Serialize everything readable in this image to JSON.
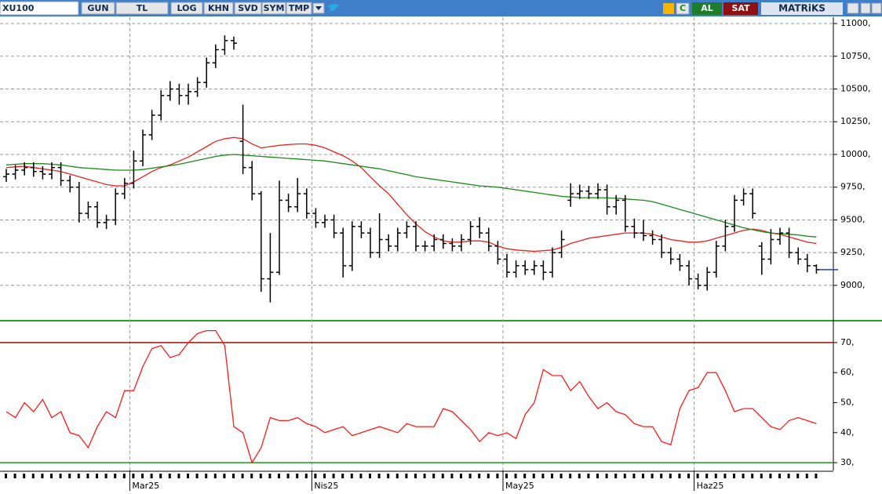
{
  "toolbar": {
    "symbol": "XU100",
    "buttons": [
      "GUN",
      "TL",
      "LOG",
      "KHN",
      "SVD",
      "SYM",
      "TMP"
    ],
    "refresh": "C",
    "buy": "AL",
    "sell": "SAT",
    "brand": "MATRiKS"
  },
  "chart_data": [
    {
      "type": "ohlc",
      "color": "#000000",
      "categories": [
        null,
        null,
        null,
        null,
        null,
        null,
        null,
        null,
        null,
        null,
        null,
        null,
        null,
        null,
        "Mar25",
        null,
        null,
        null,
        null,
        null,
        null,
        null,
        null,
        null,
        null,
        null,
        null,
        null,
        null,
        null,
        null,
        null,
        null,
        null,
        "Nis25",
        null,
        null,
        null,
        null,
        null,
        null,
        null,
        null,
        null,
        null,
        null,
        null,
        null,
        null,
        null,
        null,
        null,
        null,
        null,
        null,
        "May25",
        null,
        null,
        null,
        null,
        null,
        null,
        null,
        null,
        null,
        null,
        null,
        null,
        null,
        null,
        null,
        null,
        null,
        null,
        null,
        null,
        "Haz25",
        null,
        null,
        null,
        null,
        null,
        null,
        null,
        null,
        null,
        null,
        null,
        null,
        null
      ],
      "open": [
        9830,
        9850,
        9880,
        9900,
        9870,
        9850,
        9900,
        9800,
        9750,
        9550,
        9600,
        9480,
        9500,
        9700,
        9780,
        9950,
        10150,
        10300,
        10450,
        10500,
        10450,
        10480,
        10550,
        10700,
        10800,
        10870,
        10100,
        9900,
        9700,
        9050,
        9100,
        9650,
        9600,
        9700,
        9550,
        9480,
        9500,
        9400,
        9150,
        9450,
        9400,
        9250,
        9350,
        9300,
        9400,
        9450,
        9300,
        9300,
        9350,
        9320,
        9300,
        9350,
        9450,
        9400,
        9300,
        9200,
        9100,
        9150,
        9120,
        9150,
        9100,
        9250,
        9650,
        9700,
        9720,
        9700,
        9730,
        9600,
        9650,
        9450,
        9400,
        9380,
        9350,
        9250,
        9200,
        9150,
        9050,
        9000,
        9100,
        9300,
        9450,
        9650,
        9700,
        9300,
        9200,
        9350,
        9400,
        9250,
        9200,
        9150
      ],
      "high": [
        9890,
        9920,
        9940,
        9940,
        9910,
        9940,
        9940,
        9840,
        9790,
        9640,
        9640,
        9540,
        9740,
        9820,
        10030,
        10190,
        10340,
        10490,
        10560,
        10540,
        10540,
        10590,
        10740,
        10840,
        10910,
        10900,
        10380,
        9950,
        9720,
        9400,
        9800,
        9700,
        9820,
        9740,
        9590,
        9540,
        9540,
        9440,
        9490,
        9490,
        9440,
        9550,
        9390,
        9440,
        9490,
        9490,
        9340,
        9390,
        9390,
        9360,
        9390,
        9490,
        9520,
        9440,
        9340,
        9240,
        9190,
        9190,
        9190,
        9190,
        9290,
        9420,
        9780,
        9770,
        9760,
        9780,
        9770,
        9690,
        9690,
        9510,
        9500,
        9420,
        9390,
        9290,
        9240,
        9190,
        9090,
        9140,
        9340,
        9500,
        9690,
        9740,
        9740,
        9330,
        9430,
        9440,
        9440,
        9290,
        9240,
        9160
      ],
      "low": [
        9790,
        9810,
        9840,
        9830,
        9810,
        9810,
        9760,
        9710,
        9480,
        9510,
        9440,
        9430,
        9460,
        9660,
        9740,
        9910,
        10110,
        10260,
        10410,
        10380,
        10380,
        10440,
        10510,
        10660,
        10760,
        10800,
        9850,
        9650,
        8950,
        8870,
        9080,
        9560,
        9560,
        9510,
        9440,
        9440,
        9360,
        9060,
        9110,
        9360,
        9210,
        9210,
        9260,
        9260,
        9360,
        9260,
        9260,
        9260,
        9280,
        9260,
        9260,
        9310,
        9360,
        9260,
        9160,
        9060,
        9060,
        9080,
        9080,
        9040,
        9060,
        9210,
        9600,
        9660,
        9660,
        9660,
        9540,
        9540,
        9410,
        9360,
        9340,
        9310,
        9210,
        9160,
        9110,
        9000,
        8970,
        8960,
        9060,
        9260,
        9410,
        9610,
        9510,
        9080,
        9160,
        9310,
        9210,
        9160,
        9100,
        9090
      ],
      "close": [
        9850,
        9880,
        9900,
        9870,
        9850,
        9900,
        9800,
        9750,
        9550,
        9600,
        9480,
        9500,
        9700,
        9780,
        9950,
        10150,
        10300,
        10450,
        10500,
        10450,
        10480,
        10550,
        10700,
        10800,
        10870,
        10850,
        9900,
        9700,
        9050,
        9100,
        9650,
        9600,
        9700,
        9550,
        9480,
        9500,
        9400,
        9150,
        9450,
        9400,
        9250,
        9350,
        9300,
        9400,
        9450,
        9300,
        9300,
        9350,
        9320,
        9300,
        9350,
        9450,
        9400,
        9300,
        9200,
        9100,
        9150,
        9120,
        9150,
        9100,
        9250,
        9350,
        9700,
        9720,
        9700,
        9730,
        9600,
        9650,
        9450,
        9400,
        9380,
        9350,
        9250,
        9200,
        9150,
        9050,
        9000,
        9100,
        9300,
        9450,
        9650,
        9700,
        9550,
        9200,
        9350,
        9400,
        9250,
        9200,
        9150,
        9120
      ],
      "series": [
        {
          "color": "#e8231f",
          "values": [
            9900,
            9905,
            9910,
            9900,
            9890,
            9880,
            9870,
            9850,
            9830,
            9810,
            9790,
            9770,
            9760,
            9760,
            9790,
            9830,
            9870,
            9900,
            9920,
            9950,
            9980,
            10020,
            10060,
            10100,
            10120,
            10130,
            10120,
            10080,
            10050,
            10060,
            10070,
            10075,
            10080,
            10080,
            10070,
            10050,
            10020,
            9990,
            9950,
            9900,
            9830,
            9760,
            9700,
            9620,
            9540,
            9470,
            9410,
            9370,
            9340,
            9330,
            9330,
            9340,
            9340,
            9330,
            9300,
            9280,
            9270,
            9265,
            9260,
            9265,
            9270,
            9290,
            9320,
            9340,
            9360,
            9370,
            9380,
            9390,
            9400,
            9400,
            9400,
            9390,
            9370,
            9350,
            9340,
            9330,
            9330,
            9340,
            9360,
            9380,
            9400,
            9420,
            9430,
            9420,
            9400,
            9390,
            9370,
            9350,
            9330,
            9320
          ]
        },
        {
          "color": "#1a8a1a",
          "values": [
            9920,
            9925,
            9930,
            9930,
            9930,
            9925,
            9920,
            9910,
            9900,
            9895,
            9890,
            9885,
            9880,
            9880,
            9880,
            9885,
            9895,
            9905,
            9915,
            9925,
            9940,
            9955,
            9970,
            9985,
            9995,
            10000,
            9995,
            9990,
            9985,
            9980,
            9975,
            9970,
            9965,
            9960,
            9955,
            9950,
            9940,
            9930,
            9920,
            9910,
            9900,
            9890,
            9875,
            9860,
            9845,
            9830,
            9820,
            9810,
            9800,
            9790,
            9780,
            9770,
            9760,
            9755,
            9750,
            9740,
            9730,
            9720,
            9710,
            9700,
            9690,
            9680,
            9675,
            9670,
            9670,
            9670,
            9668,
            9665,
            9660,
            9655,
            9650,
            9640,
            9620,
            9600,
            9580,
            9560,
            9540,
            9520,
            9500,
            9480,
            9460,
            9440,
            9425,
            9410,
            9400,
            9395,
            9390,
            9385,
            9375,
            9370
          ]
        }
      ],
      "ylim": [
        8742,
        11048
      ],
      "yticks": [
        {
          "value": 9000,
          "label": "9000,"
        },
        {
          "value": 9250,
          "label": "9250,"
        },
        {
          "value": 9500,
          "label": "9500,"
        },
        {
          "value": 9750,
          "label": "9750,"
        },
        {
          "value": 10000,
          "label": "10000,"
        },
        {
          "value": 10250,
          "label": "10250,"
        },
        {
          "value": 10500,
          "label": "10500,"
        },
        {
          "value": 10750,
          "label": "10750,"
        },
        {
          "value": 11000,
          "label": "11000,"
        }
      ],
      "grid": true
    },
    {
      "type": "line",
      "color": "#ff1a1a",
      "values": [
        47,
        45,
        50,
        47,
        51,
        45,
        47,
        40,
        39,
        35,
        42,
        47,
        45,
        54,
        54,
        62,
        68,
        69,
        65,
        66,
        70,
        73,
        74,
        74,
        69,
        42,
        40,
        30,
        35,
        45,
        44,
        44,
        45,
        43,
        42,
        40,
        41,
        42,
        39,
        40,
        41,
        42,
        41,
        40,
        43,
        42,
        42,
        42,
        48,
        47,
        44,
        41,
        37,
        40,
        39,
        40,
        38,
        46,
        50,
        61,
        59,
        59,
        54,
        57,
        52,
        48,
        50,
        47,
        46,
        43,
        42,
        42,
        37,
        36,
        48,
        54,
        55,
        60,
        60,
        54,
        47,
        48,
        48,
        45,
        42,
        41,
        44,
        45,
        44,
        43
      ],
      "reference_lines": [
        {
          "value": 70,
          "color": "#a01010"
        },
        {
          "value": 30,
          "color": "#10a010"
        }
      ],
      "ylim": [
        27.4,
        76.5
      ],
      "yticks": [
        {
          "value": 30,
          "label": "30,"
        },
        {
          "value": 40,
          "label": "40,"
        },
        {
          "value": 50,
          "label": "50,"
        },
        {
          "value": 60,
          "label": "60,"
        },
        {
          "value": 70,
          "label": "70,"
        }
      ],
      "grid": false
    }
  ]
}
